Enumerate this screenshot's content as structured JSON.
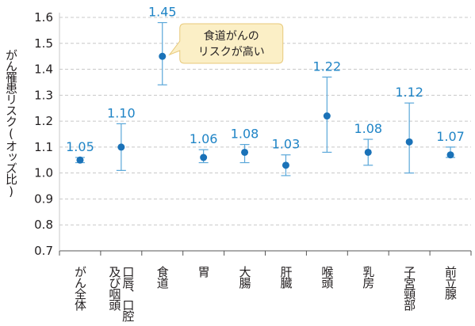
{
  "colors": {
    "series": "#1a72b8",
    "label": "#1f84c6",
    "error_bar": "#5aa7d9",
    "grid": "#c8c8c8",
    "callout_fill": "#fbefc6",
    "callout_stroke": "#e8c97a"
  },
  "chart_data": {
    "type": "scatter",
    "title": "",
    "xlabel": "",
    "ylabel": "がん罹患リスク(オッズ比)",
    "ylim": [
      0.7,
      1.6
    ],
    "yticks": [
      "0.7",
      "0.8",
      "0.9",
      "1.0",
      "1.1",
      "1.2",
      "1.3",
      "1.4",
      "1.5",
      "1.6"
    ],
    "grid": true,
    "categories": [
      "がん全体",
      "口唇、口腔及び咽頭",
      "食道",
      "胃",
      "大腸",
      "肝臓",
      "喉頭",
      "乳房",
      "子宮頸部",
      "前立腺"
    ],
    "category_lines": [
      [
        "がん全体"
      ],
      [
        "口唇、口腔",
        "及び咽頭"
      ],
      [
        "食道"
      ],
      [
        "胃"
      ],
      [
        "大腸"
      ],
      [
        "肝臓"
      ],
      [
        "喉頭"
      ],
      [
        "乳房"
      ],
      [
        "子宮頸部"
      ],
      [
        "前立腺"
      ]
    ],
    "values": [
      1.05,
      1.1,
      1.45,
      1.06,
      1.08,
      1.03,
      1.22,
      1.08,
      1.12,
      1.07
    ],
    "value_labels": [
      "1.05",
      "1.10",
      "1.45",
      "1.06",
      "1.08",
      "1.03",
      "1.22",
      "1.08",
      "1.12",
      "1.07"
    ],
    "ci_lower": [
      1.04,
      1.01,
      1.34,
      1.04,
      1.04,
      0.99,
      1.08,
      1.03,
      1.0,
      1.06
    ],
    "ci_upper": [
      1.06,
      1.19,
      1.58,
      1.09,
      1.11,
      1.07,
      1.37,
      1.13,
      1.27,
      1.1
    ],
    "annotation": {
      "category": "食道",
      "lines": [
        "食道がんの",
        "リスクが高い"
      ]
    }
  }
}
